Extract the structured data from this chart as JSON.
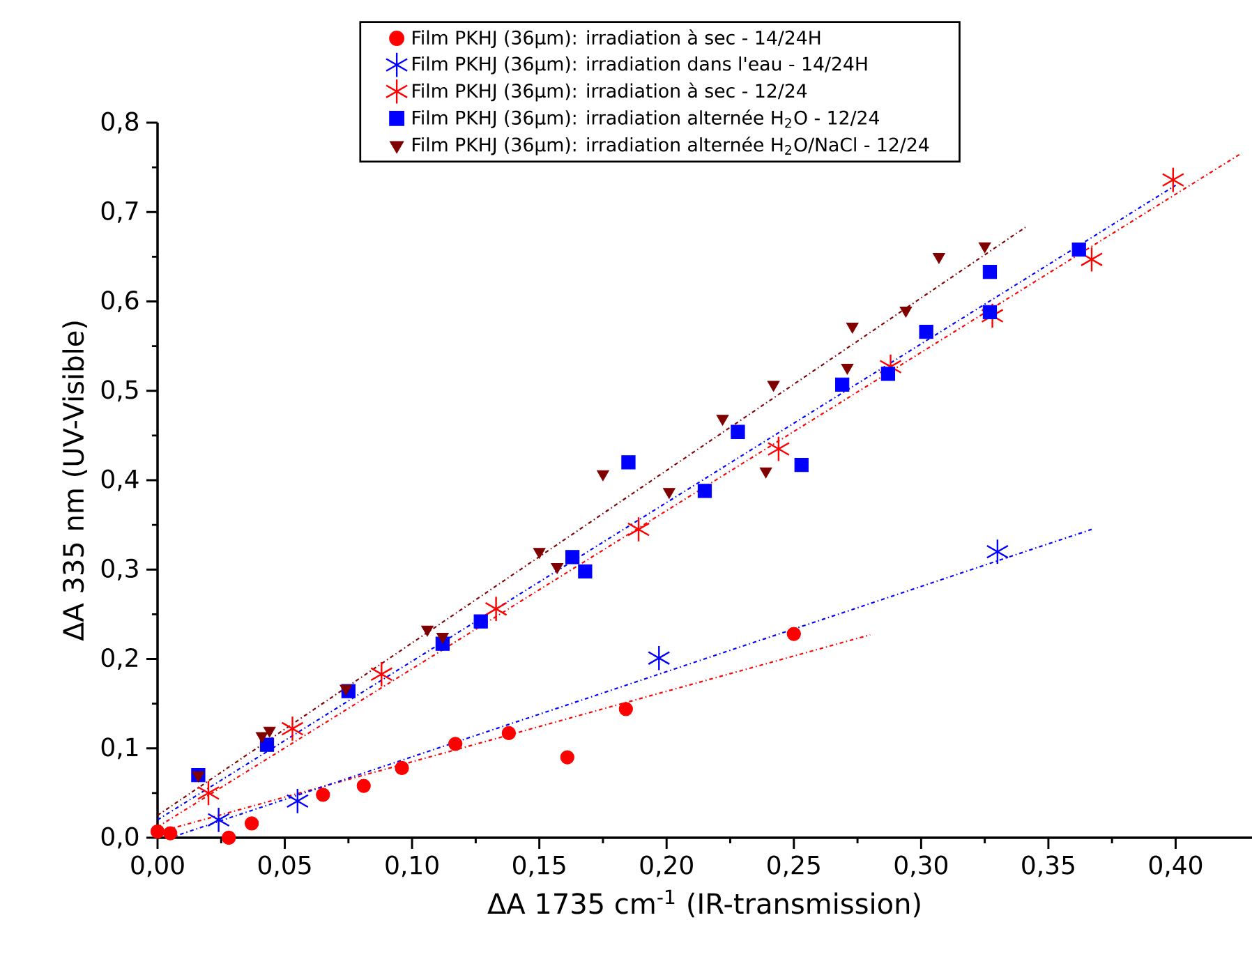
{
  "chart_data": {
    "type": "scatter",
    "xlabel": "ΔA 1735 cm$^{-1}$ (IR-transmission)",
    "ylabel": "ΔA 335 nm (UV-Visible)",
    "xlim": [
      0,
      0.43
    ],
    "ylim": [
      0,
      0.8
    ],
    "xticks": [
      {
        "value": 0,
        "label": "0,00"
      },
      {
        "value": 0.05,
        "label": "0,05"
      },
      {
        "value": 0.1,
        "label": "0,10"
      },
      {
        "value": 0.15,
        "label": "0,15"
      },
      {
        "value": 0.2,
        "label": "0,20"
      },
      {
        "value": 0.25,
        "label": "0,25"
      },
      {
        "value": 0.3,
        "label": "0,30"
      },
      {
        "value": 0.35,
        "label": "0,35"
      },
      {
        "value": 0.4,
        "label": "0,40"
      }
    ],
    "yticks": [
      {
        "value": 0,
        "label": "0,0"
      },
      {
        "value": 0.1,
        "label": "0,1"
      },
      {
        "value": 0.2,
        "label": "0,2"
      },
      {
        "value": 0.3,
        "label": "0,3"
      },
      {
        "value": 0.4,
        "label": "0,4"
      },
      {
        "value": 0.5,
        "label": "0,5"
      },
      {
        "value": 0.6,
        "label": "0,6"
      },
      {
        "value": 0.7,
        "label": "0,7"
      },
      {
        "value": 0.8,
        "label": "0,8"
      }
    ],
    "legend": "top",
    "grid": false,
    "series": [
      {
        "name": "Film PKHJ (36μm): irradiation à sec - 14/24H",
        "color": "#ff0000",
        "marker": "circle",
        "x": [
          0.0,
          0.005,
          0.028,
          0.037,
          0.065,
          0.081,
          0.096,
          0.117,
          0.138,
          0.161,
          0.184,
          0.25
        ],
        "values": [
          0.007,
          0.005,
          0.0,
          0.016,
          0.048,
          0.058,
          0.078,
          0.105,
          0.117,
          0.09,
          0.144,
          0.228
        ]
      },
      {
        "name": "Film PKHJ (36μm): irradiation dans l'eau - 14/24H",
        "color": "#0000ff",
        "marker": "cross",
        "x": [
          0.024,
          0.055,
          0.197,
          0.33
        ],
        "values": [
          0.02,
          0.041,
          0.201,
          0.32
        ]
      },
      {
        "name": "Film PKHJ (36μm): irradiation à sec - 12/24",
        "color": "#ff0000",
        "marker": "cross",
        "x": [
          0.02,
          0.053,
          0.088,
          0.133,
          0.189,
          0.244,
          0.288,
          0.328,
          0.367,
          0.399
        ],
        "values": [
          0.05,
          0.122,
          0.183,
          0.256,
          0.345,
          0.435,
          0.527,
          0.584,
          0.647,
          0.736
        ]
      },
      {
        "name": "Film PKHJ (36μm): irradiation alternée H$_{2}$O - 12/24",
        "color": "#0000ff",
        "marker": "square",
        "x": [
          0.016,
          0.043,
          0.075,
          0.112,
          0.127,
          0.163,
          0.168,
          0.185,
          0.215,
          0.228,
          0.253,
          0.269,
          0.287,
          0.302,
          0.327,
          0.327,
          0.362
        ],
        "values": [
          0.07,
          0.104,
          0.164,
          0.217,
          0.242,
          0.314,
          0.298,
          0.42,
          0.388,
          0.454,
          0.417,
          0.507,
          0.519,
          0.566,
          0.588,
          0.633,
          0.658
        ]
      },
      {
        "name": "Film PKHJ (36μm): irradiation alternée H$_{2}$O/NaCl - 12/24",
        "color": "#800000",
        "marker": "triangle",
        "x": [
          0.016,
          0.041,
          0.044,
          0.074,
          0.106,
          0.112,
          0.15,
          0.157,
          0.175,
          0.201,
          0.222,
          0.239,
          0.242,
          0.271,
          0.273,
          0.294,
          0.307,
          0.325
        ],
        "values": [
          0.07,
          0.114,
          0.12,
          0.167,
          0.233,
          0.225,
          0.32,
          0.303,
          0.407,
          0.387,
          0.469,
          0.41,
          0.507,
          0.526,
          0.572,
          0.59,
          0.65,
          0.662
        ]
      },
      {
        "type": "line",
        "color": "#ff0000",
        "line_style": "dotted",
        "x": [
          0.0,
          0.28
        ],
        "values": [
          0.006,
          0.227
        ]
      },
      {
        "type": "line",
        "color": "#0000ff",
        "line_style": "dotted",
        "x": [
          0.005,
          0.367
        ],
        "values": [
          0.0,
          0.345
        ]
      },
      {
        "type": "line",
        "color": "#ff0000",
        "line_style": "dotted",
        "x": [
          0.0,
          0.426
        ],
        "values": [
          0.012,
          0.766
        ]
      },
      {
        "type": "line",
        "color": "#0000ff",
        "line_style": "dotted",
        "x": [
          0.0,
          0.4
        ],
        "values": [
          0.02,
          0.73
        ]
      },
      {
        "type": "line",
        "color": "#800000",
        "line_style": "dotted",
        "x": [
          0.0,
          0.341
        ],
        "values": [
          0.025,
          0.683
        ]
      }
    ]
  }
}
